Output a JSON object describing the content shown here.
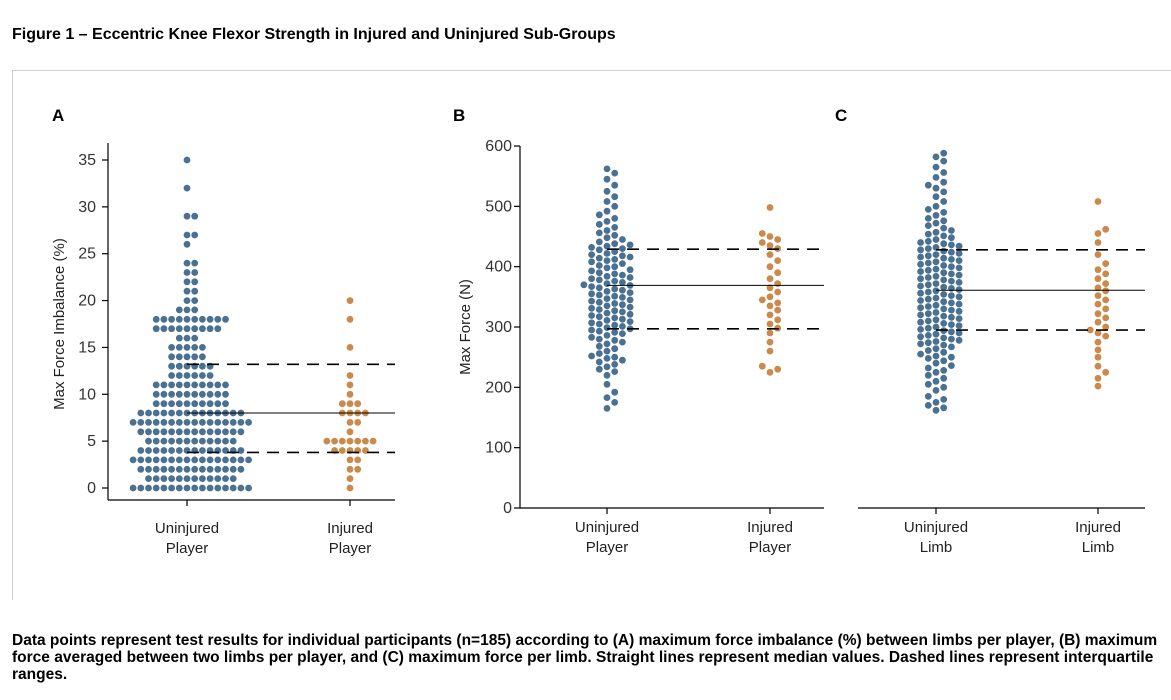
{
  "figure": {
    "title": "Figure 1 – Eccentric Knee Flexor Strength in Injured and Uninjured Sub-Groups",
    "caption": "Data points represent test results for individual participants (n=185) according to (A) maximum force imbalance (%) between limbs per player, (B) maximum force averaged between two limbs per player, and (C) maximum force per limb. Straight lines represent median values. Dashed lines represent interquartile ranges."
  },
  "colors": {
    "uninjured": "#4a7191",
    "injured": "#c98a4b",
    "axis": "#000000"
  },
  "chart_data": [
    {
      "type": "scatter",
      "panel_label": "A",
      "ylabel": "Max Force Imbalance (%)",
      "ylim": [
        0,
        35
      ],
      "yticks": [
        0,
        5,
        10,
        15,
        20,
        25,
        30,
        35
      ],
      "categories": [
        "Uninjured\nPlayer",
        "Injured\nPlayer"
      ],
      "median": 8,
      "iqr": [
        3.8,
        13.2
      ],
      "series": [
        {
          "category": "Uninjured\nPlayer",
          "values": [
            0,
            0,
            0,
            0,
            0,
            0,
            0,
            0,
            0,
            0,
            0,
            0,
            0,
            0,
            0,
            0,
            1,
            1,
            1,
            1,
            1,
            1,
            1,
            1,
            1,
            1,
            1,
            1,
            2,
            2,
            2,
            2,
            2,
            2,
            2,
            2,
            2,
            2,
            2,
            2,
            2,
            2,
            3,
            3,
            3,
            3,
            3,
            3,
            3,
            3,
            3,
            3,
            3,
            3,
            3,
            3,
            3,
            3,
            4,
            4,
            4,
            4,
            4,
            4,
            4,
            4,
            4,
            4,
            4,
            4,
            4,
            4,
            5,
            5,
            5,
            5,
            5,
            5,
            5,
            5,
            5,
            5,
            5,
            5,
            6,
            6,
            6,
            6,
            6,
            6,
            6,
            6,
            6,
            6,
            6,
            6,
            6,
            6,
            7,
            7,
            7,
            7,
            7,
            7,
            7,
            7,
            7,
            7,
            7,
            7,
            7,
            7,
            7,
            7,
            8,
            8,
            8,
            8,
            8,
            8,
            8,
            8,
            8,
            8,
            8,
            8,
            8,
            8,
            9,
            9,
            9,
            9,
            9,
            9,
            9,
            9,
            9,
            9,
            10,
            10,
            10,
            10,
            10,
            10,
            10,
            10,
            10,
            10,
            11,
            11,
            11,
            11,
            11,
            11,
            11,
            11,
            11,
            11,
            12,
            12,
            12,
            12,
            12,
            12,
            13,
            13,
            13,
            13,
            13,
            13,
            14,
            14,
            14,
            14,
            14,
            15,
            15,
            15,
            15,
            15,
            16,
            16,
            16,
            17,
            17,
            17,
            17,
            17,
            17,
            17,
            17,
            17,
            18,
            18,
            18,
            18,
            18,
            18,
            18,
            18,
            18,
            18,
            19,
            19,
            19,
            20,
            20,
            21,
            21,
            22,
            22,
            23,
            23,
            24,
            24,
            26,
            27,
            27,
            29,
            29,
            32,
            35
          ]
        },
        {
          "category": "Injured\nPlayer",
          "values": [
            0,
            1,
            2,
            2,
            3,
            3,
            4,
            4,
            4,
            4,
            4,
            5,
            5,
            5,
            5,
            5,
            5,
            5,
            6,
            7,
            7,
            8,
            8,
            8,
            8,
            9,
            9,
            9,
            10,
            11,
            12,
            15,
            18,
            20
          ]
        }
      ]
    },
    {
      "type": "scatter",
      "panel_label": "B",
      "ylabel": "Max Force (N)",
      "ylim": [
        0,
        600
      ],
      "yticks": [
        0,
        100,
        200,
        300,
        400,
        500,
        600
      ],
      "categories": [
        "Uninjured\nPlayer",
        "Injured\nPlayer"
      ],
      "median": 369,
      "iqr": [
        297,
        429
      ],
      "series": [
        {
          "category": "Uninjured\nPlayer",
          "values": [
            165,
            175,
            183,
            192,
            205,
            220,
            226,
            230,
            234,
            238,
            242,
            245,
            248,
            250,
            252,
            256,
            260,
            264,
            268,
            272,
            275,
            278,
            280,
            283,
            286,
            289,
            291,
            293,
            295,
            297,
            299,
            301,
            303,
            305,
            307,
            309,
            311,
            313,
            315,
            317,
            319,
            321,
            323,
            325,
            327,
            329,
            331,
            333,
            335,
            337,
            339,
            341,
            343,
            345,
            347,
            349,
            351,
            353,
            355,
            357,
            359,
            361,
            363,
            365,
            367,
            369,
            370,
            372,
            374,
            376,
            378,
            380,
            382,
            384,
            386,
            388,
            390,
            393,
            395,
            398,
            400,
            402,
            405,
            408,
            410,
            412,
            414,
            416,
            418,
            420,
            422,
            425,
            428,
            430,
            432,
            434,
            436,
            438,
            441,
            445,
            448,
            452,
            456,
            460,
            465,
            470,
            475,
            480,
            486,
            492,
            500,
            508,
            516,
            525,
            535,
            545,
            555,
            562
          ]
        },
        {
          "category": "Injured\nPlayer",
          "values": [
            225,
            230,
            235,
            260,
            275,
            290,
            298,
            305,
            312,
            320,
            328,
            335,
            340,
            345,
            350,
            358,
            365,
            372,
            380,
            390,
            400,
            410,
            420,
            430,
            435,
            440,
            445,
            450,
            455,
            498
          ]
        }
      ]
    },
    {
      "type": "scatter",
      "panel_label": "C",
      "ylabel": "",
      "ylim": [
        0,
        600
      ],
      "categories": [
        "Uninjured\nLimb",
        "Injured\nLimb"
      ],
      "median": 361,
      "iqr": [
        295,
        428
      ],
      "series": [
        {
          "category": "Uninjured\nLimb",
          "values": [
            162,
            166,
            170,
            175,
            180,
            185,
            195,
            200,
            205,
            210,
            215,
            220,
            225,
            228,
            232,
            236,
            240,
            244,
            248,
            250,
            252,
            255,
            258,
            261,
            264,
            267,
            270,
            272,
            274,
            276,
            278,
            280,
            282,
            284,
            286,
            288,
            290,
            292,
            294,
            296,
            298,
            300,
            302,
            304,
            306,
            308,
            310,
            312,
            314,
            316,
            318,
            320,
            322,
            324,
            326,
            328,
            330,
            332,
            334,
            336,
            338,
            340,
            342,
            344,
            346,
            348,
            350,
            352,
            354,
            356,
            358,
            360,
            362,
            364,
            366,
            368,
            370,
            372,
            374,
            376,
            378,
            380,
            382,
            384,
            386,
            388,
            390,
            392,
            394,
            396,
            398,
            400,
            402,
            404,
            406,
            408,
            410,
            412,
            414,
            416,
            418,
            420,
            422,
            424,
            426,
            428,
            430,
            432,
            434,
            436,
            438,
            440,
            442,
            445,
            448,
            451,
            454,
            457,
            460,
            464,
            468,
            472,
            476,
            480,
            485,
            490,
            495,
            500,
            508,
            516,
            524,
            530,
            535,
            540,
            548,
            556,
            565,
            575,
            582,
            588
          ]
        },
        {
          "category": "Injured\nLimb",
          "values": [
            202,
            215,
            225,
            235,
            250,
            262,
            275,
            285,
            290,
            295,
            300,
            308,
            315,
            322,
            330,
            338,
            345,
            352,
            360,
            365,
            372,
            380,
            388,
            395,
            405,
            420,
            440,
            455,
            462,
            508
          ]
        }
      ]
    }
  ]
}
